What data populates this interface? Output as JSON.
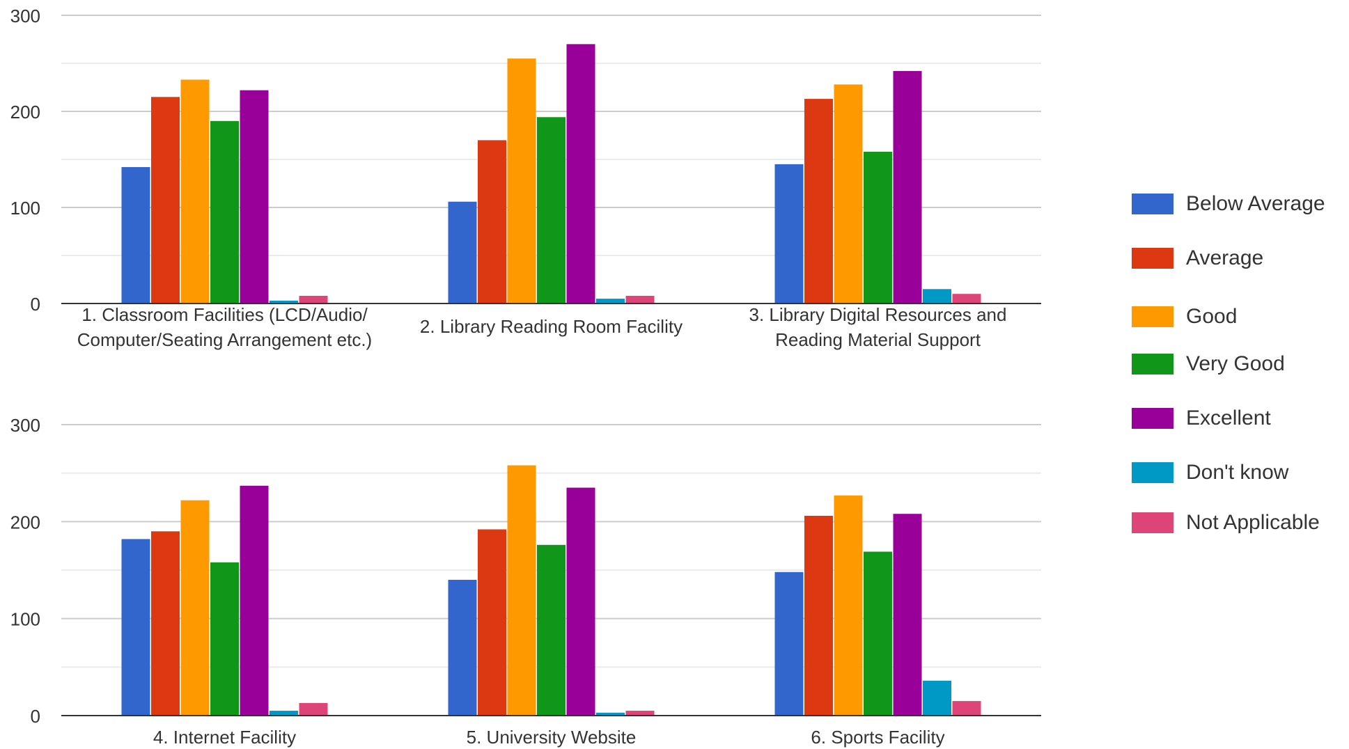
{
  "chart_data": [
    {
      "type": "bar",
      "categories": [
        "1. Classroom Facilities (LCD/Audio/\nComputer/Seating Arrangement etc.)",
        "2. Library Reading Room Facility",
        "3. Library Digital Resources and\nReading Material Support"
      ],
      "series": [
        {
          "name": "Below Average",
          "values": [
            142,
            106,
            145
          ]
        },
        {
          "name": "Average",
          "values": [
            215,
            170,
            213
          ]
        },
        {
          "name": "Good",
          "values": [
            233,
            255,
            228
          ]
        },
        {
          "name": "Very Good",
          "values": [
            190,
            194,
            158
          ]
        },
        {
          "name": "Excellent",
          "values": [
            222,
            270,
            242
          ]
        },
        {
          "name": "Don't know",
          "values": [
            3,
            5,
            15
          ]
        },
        {
          "name": "Not Applicable",
          "values": [
            8,
            8,
            10
          ]
        }
      ],
      "yticks": [
        "0",
        "100",
        "200",
        "300"
      ],
      "ylim": [
        0,
        300
      ],
      "grid": true
    },
    {
      "type": "bar",
      "categories": [
        "4. Internet Facility",
        "5. University Website",
        "6. Sports Facility"
      ],
      "series": [
        {
          "name": "Below Average",
          "values": [
            182,
            140,
            148
          ]
        },
        {
          "name": "Average",
          "values": [
            190,
            192,
            206
          ]
        },
        {
          "name": "Good",
          "values": [
            222,
            258,
            227
          ]
        },
        {
          "name": "Very Good",
          "values": [
            158,
            176,
            169
          ]
        },
        {
          "name": "Excellent",
          "values": [
            237,
            235,
            208
          ]
        },
        {
          "name": "Don't know",
          "values": [
            5,
            3,
            36
          ]
        },
        {
          "name": "Not Applicable",
          "values": [
            13,
            5,
            15
          ]
        }
      ],
      "yticks": [
        "0",
        "100",
        "200",
        "300"
      ],
      "ylim": [
        0,
        300
      ],
      "grid": true
    }
  ],
  "legend": {
    "placement": "right",
    "items": [
      {
        "label": "Below Average",
        "color": "#3366cc"
      },
      {
        "label": "Average",
        "color": "#dc3912"
      },
      {
        "label": "Good",
        "color": "#ff9900"
      },
      {
        "label": "Very Good",
        "color": "#109618"
      },
      {
        "label": "Excellent",
        "color": "#990099"
      },
      {
        "label": "Don't know",
        "color": "#0099c6"
      },
      {
        "label": "Not Applicable",
        "color": "#dd4477"
      }
    ]
  }
}
